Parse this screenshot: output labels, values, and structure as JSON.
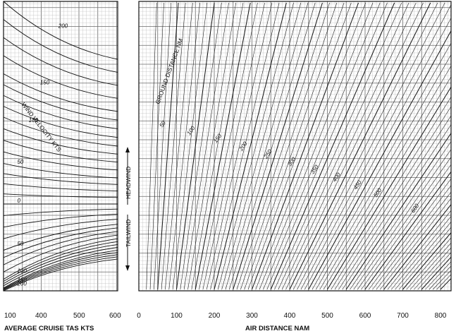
{
  "chart_data": [
    {
      "type": "line",
      "panel": "cruise-tas",
      "xlabel": "AVERAGE CRUISE TAS  KTS",
      "ylabel": "",
      "title": "",
      "x_ticks": [
        "100",
        "400",
        "500",
        "600"
      ],
      "xlim": [
        300,
        600
      ],
      "series_title": "WIND VELOCITY  KTS",
      "series": [
        {
          "name": "200",
          "values": [
            0.0,
            0.2
          ]
        },
        {
          "name": "150",
          "values": [
            0.25,
            0.38
          ]
        },
        {
          "name": "100",
          "values": [
            0.4,
            0.5
          ]
        },
        {
          "name": "50",
          "values": [
            0.56,
            0.61
          ]
        },
        {
          "name": "0",
          "values": [
            0.7,
            0.7
          ]
        },
        {
          "name": "50",
          "values": [
            0.86,
            0.77
          ]
        },
        {
          "name": "100",
          "values": [
            0.96,
            0.82
          ]
        },
        {
          "name": "150",
          "values": [
            0.99,
            0.86
          ]
        },
        {
          "name": "200",
          "values": [
            1.0,
            0.89
          ]
        }
      ],
      "series_levels_note": ""
    },
    {
      "type": "line",
      "panel": "air-distance",
      "xlabel": "AIR DISTANCE  NAM",
      "ylabel": "",
      "title": "",
      "x_ticks": [
        "0",
        "100",
        "200",
        "300",
        "400",
        "500",
        "600",
        "700",
        "800"
      ],
      "xlim": [
        0,
        850
      ],
      "series_title": "GROUND DISTANCE  NM",
      "series": [
        {
          "name": "50",
          "values": [
            50
          ]
        },
        {
          "name": "100",
          "values": [
            100
          ]
        },
        {
          "name": "150",
          "values": [
            150
          ]
        },
        {
          "name": "200",
          "values": [
            200
          ]
        },
        {
          "name": "250",
          "values": [
            250
          ]
        },
        {
          "name": "300",
          "values": [
            300
          ]
        },
        {
          "name": "350",
          "values": [
            350
          ]
        },
        {
          "name": "400",
          "values": [
            400
          ]
        },
        {
          "name": "450",
          "values": [
            450
          ]
        },
        {
          "name": "500",
          "values": [
            500
          ]
        },
        {
          "name": "600",
          "values": [
            600
          ]
        },
        {
          "name": "700",
          "values": [
            700
          ]
        },
        {
          "name": "800",
          "values": [
            800
          ]
        }
      ],
      "side_labels": {
        "headwind": "HEADWIND",
        "tailwind": "TAILWIND"
      }
    }
  ]
}
